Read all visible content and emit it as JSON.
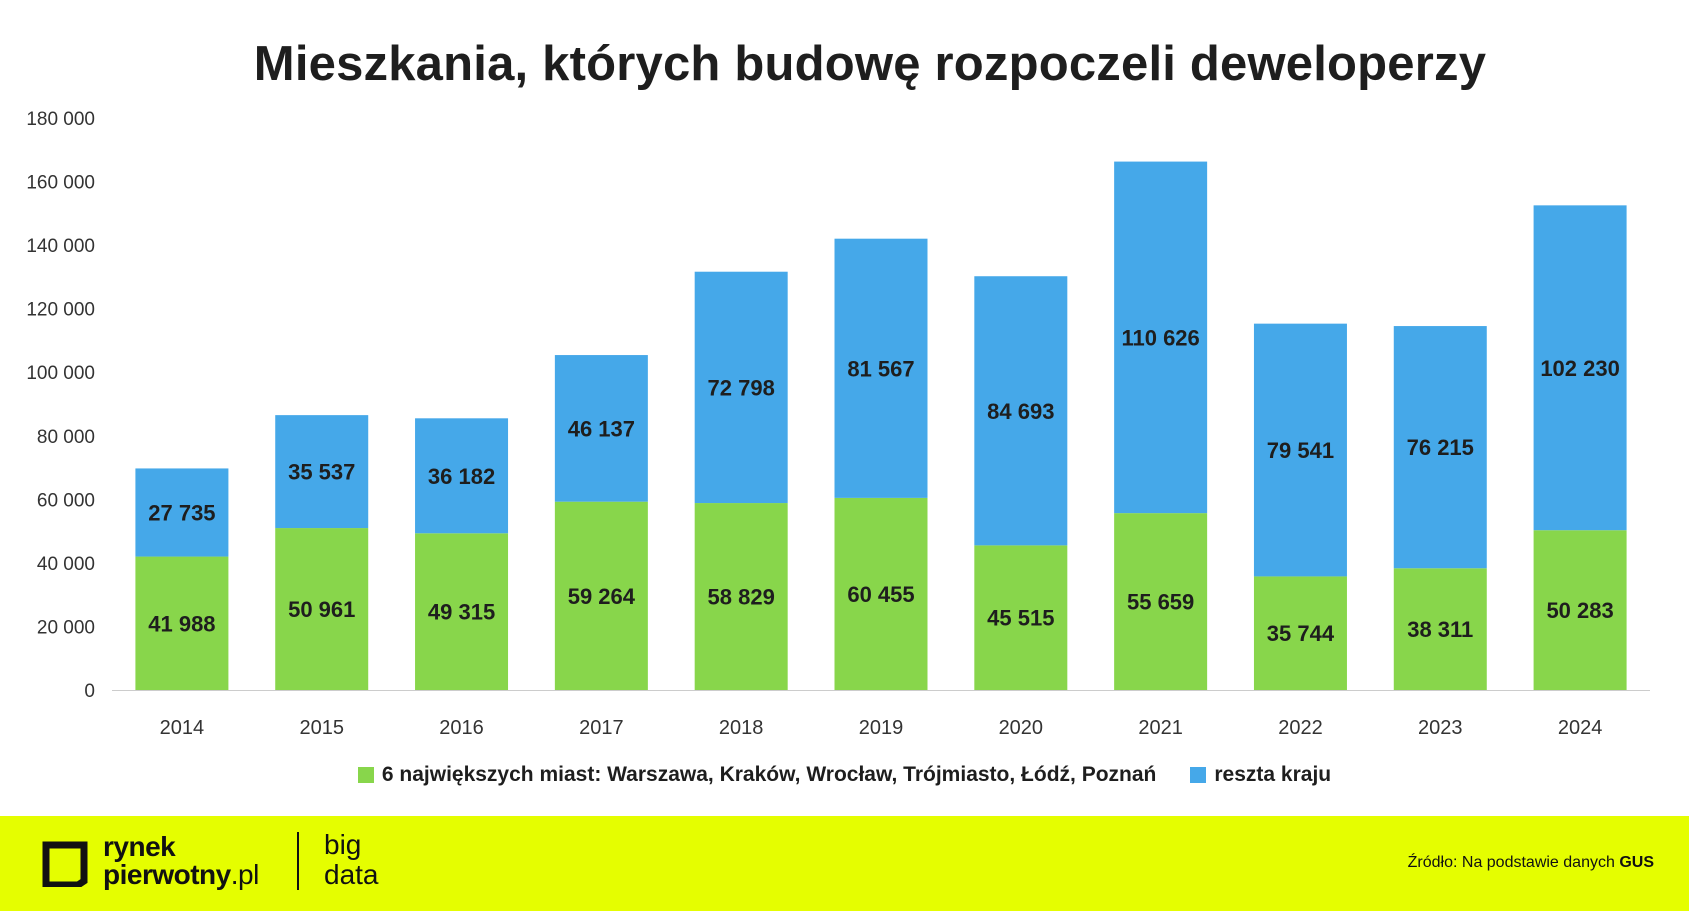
{
  "colors": {
    "green": "#88D64B",
    "blue": "#45A8E9",
    "footer_bg": "#E5FE00"
  },
  "chart_data": {
    "type": "bar",
    "stacked": true,
    "title": "Mieszkania, których budowę rozpoczeli deweloperzy",
    "categories": [
      "2014",
      "2015",
      "2016",
      "2017",
      "2018",
      "2019",
      "2020",
      "2021",
      "2022",
      "2023",
      "2024"
    ],
    "series": [
      {
        "name": "6 największych miast: Warszawa, Kraków, Wrocław, Trójmiasto, Łódź, Poznań",
        "color": "#88D64B",
        "values": [
          41988,
          50961,
          49315,
          59264,
          58829,
          60455,
          45515,
          55659,
          35744,
          38311,
          50283
        ],
        "labels": [
          "41 988",
          "50 961",
          "49 315",
          "59 264",
          "58 829",
          "60 455",
          "45 515",
          "55 659",
          "35 744",
          "38 311",
          "50 283"
        ]
      },
      {
        "name": "reszta kraju",
        "color": "#45A8E9",
        "values": [
          27735,
          35537,
          36182,
          46137,
          72798,
          81567,
          84693,
          110626,
          79541,
          76215,
          102230
        ],
        "labels": [
          "27 735",
          "35 537",
          "36 182",
          "46 137",
          "72 798",
          "81 567",
          "84 693",
          "110 626",
          "79 541",
          "76 215",
          "102 230"
        ]
      }
    ],
    "ylim": [
      0,
      180000
    ],
    "yticks": [
      0,
      20000,
      40000,
      60000,
      80000,
      100000,
      120000,
      140000,
      160000,
      180000
    ],
    "ytick_labels": [
      "0",
      "20 000",
      "40 000",
      "60 000",
      "80 000",
      "100 000",
      "120 000",
      "140 000",
      "160 000",
      "180 000"
    ],
    "grid": false,
    "legend_position": "bottom"
  },
  "legend": {
    "item1": "6 największych miast: Warszawa, Kraków, Wrocław, Trójmiasto, Łódź, Poznań",
    "item2": "reszta kraju"
  },
  "footer": {
    "logo_line1": "rynek",
    "logo_line2": "pierwotny",
    "logo_suffix": ".pl",
    "bigdata_line1": "big",
    "bigdata_line2": "data",
    "source_prefix": "Źródło: Na podstawie danych",
    "source_bold": "GUS"
  }
}
